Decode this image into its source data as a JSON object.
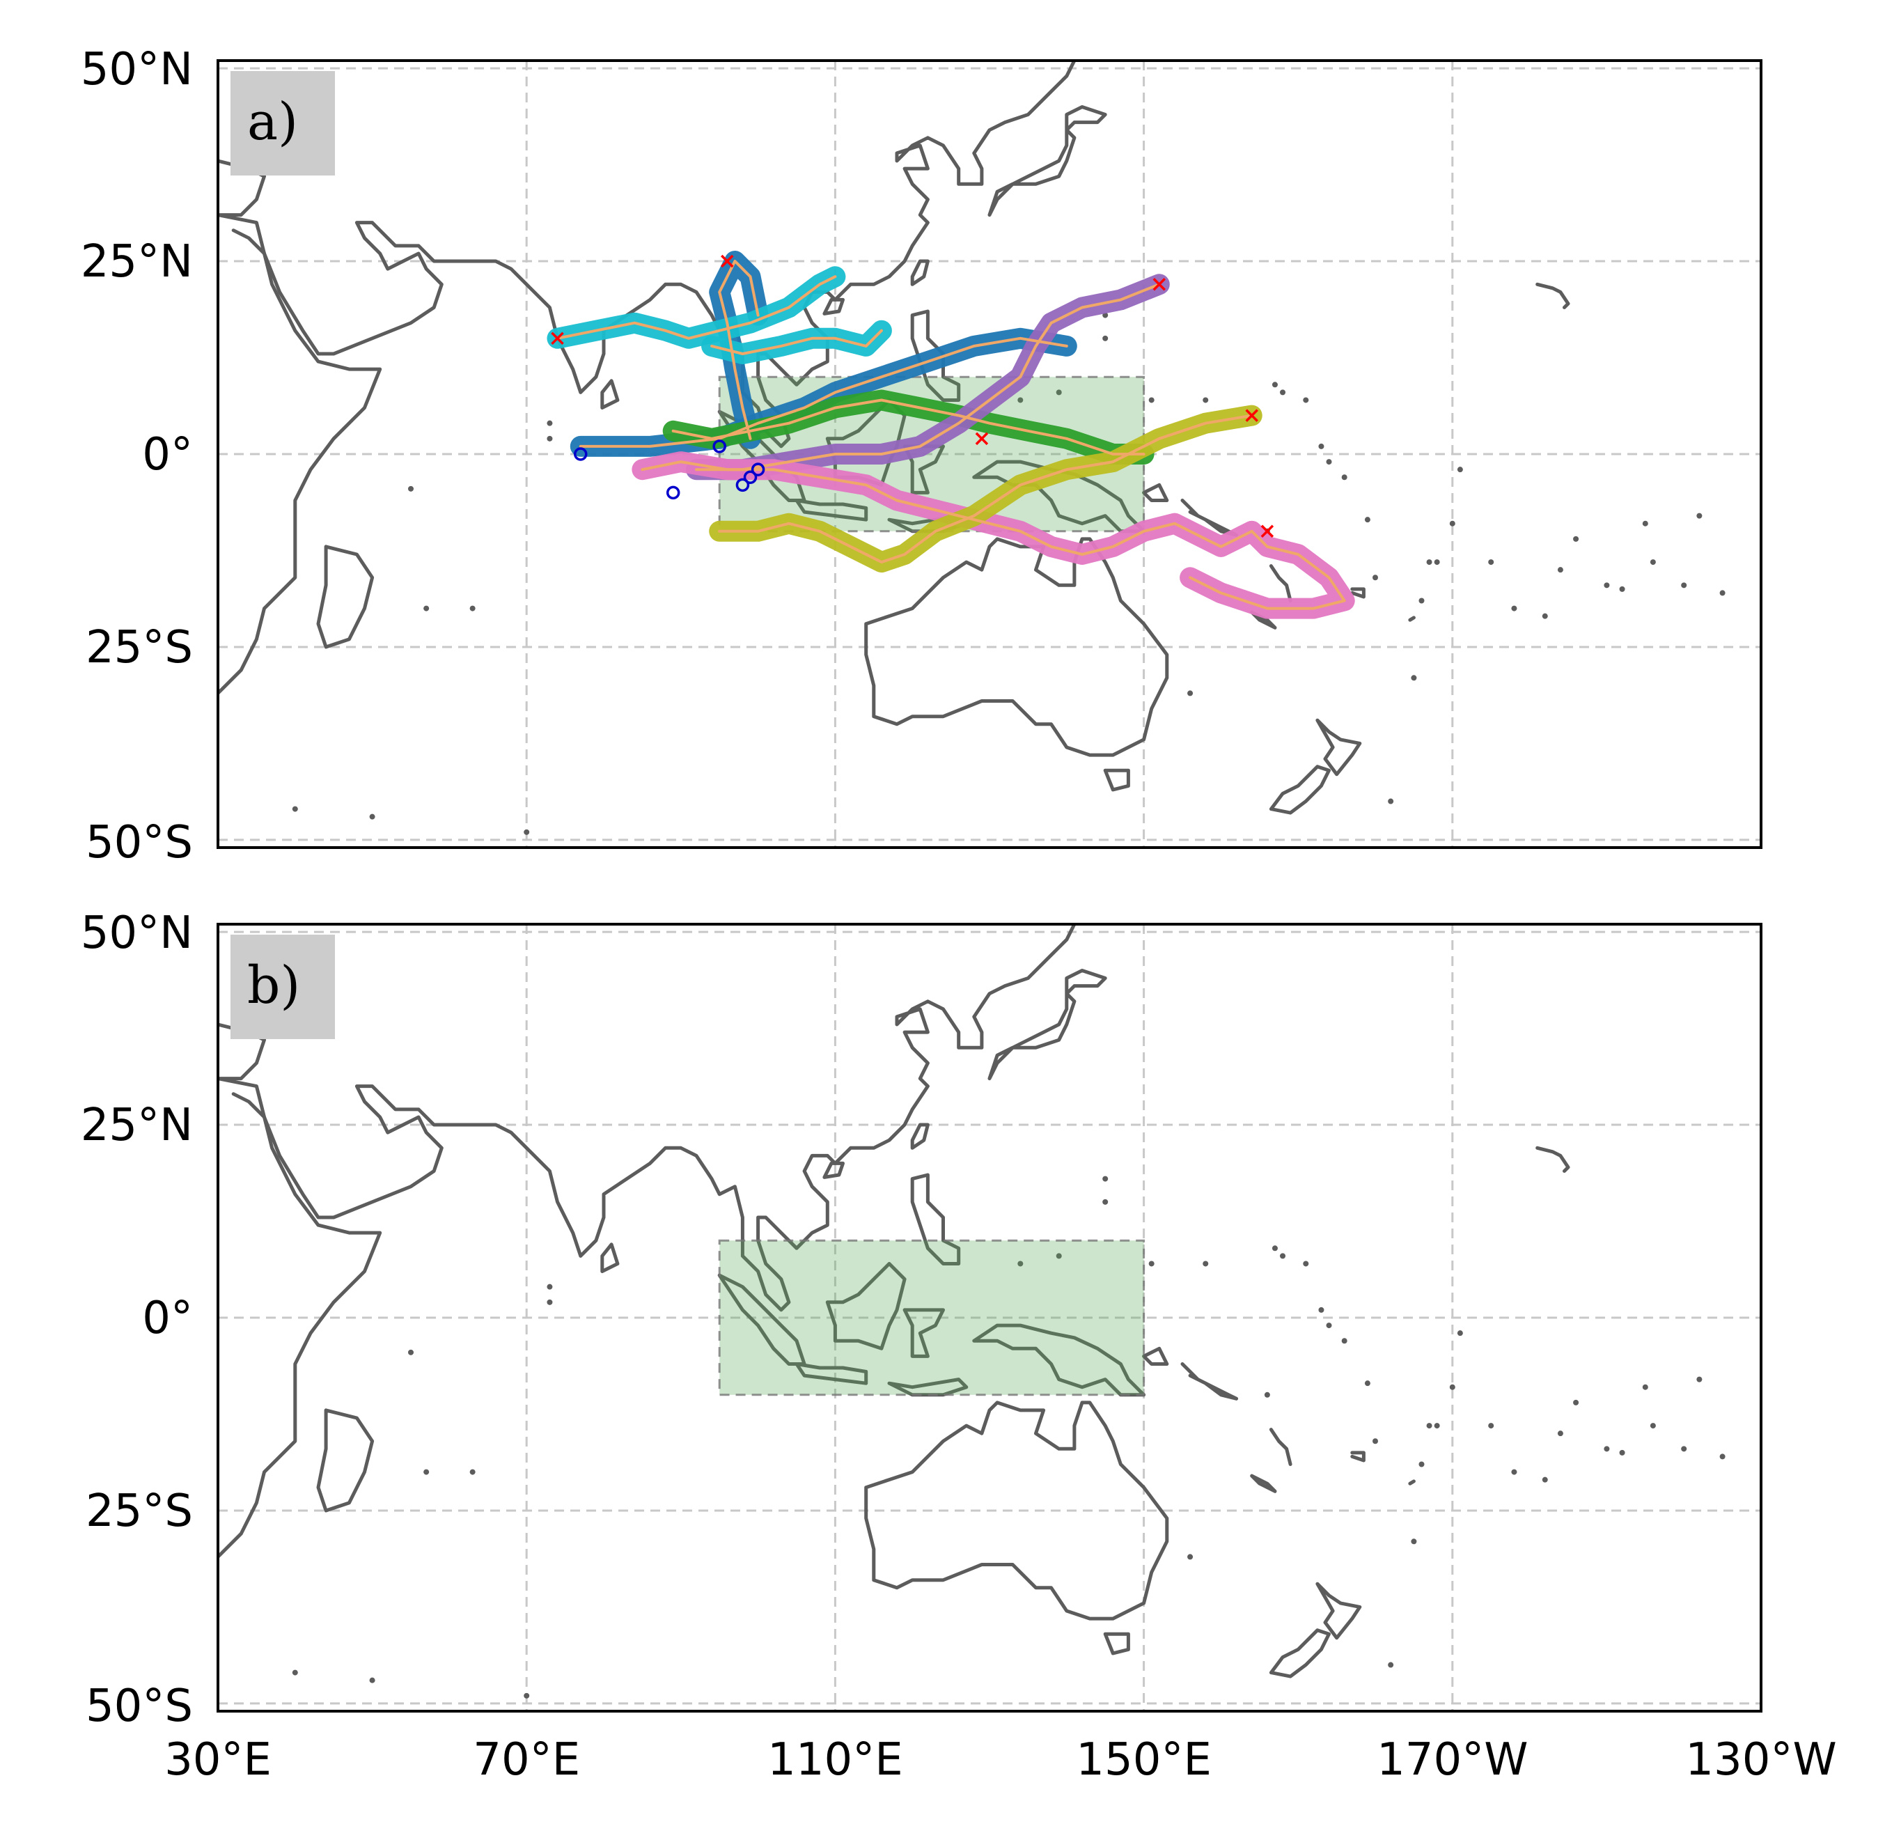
{
  "panels": [
    {
      "label": "a)",
      "has_tracks": true
    },
    {
      "label": "b)",
      "has_tracks": false
    }
  ],
  "axes": {
    "x_ticks": [
      {
        "lon": 30,
        "label": "30°E"
      },
      {
        "lon": 70,
        "label": "70°E"
      },
      {
        "lon": 110,
        "label": "110°E"
      },
      {
        "lon": 150,
        "label": "150°E"
      },
      {
        "lon": 190,
        "label": "170°W"
      },
      {
        "lon": 230,
        "label": "130°W"
      }
    ],
    "y_ticks": [
      {
        "lat": 50,
        "label": "50°N"
      },
      {
        "lat": 25,
        "label": "25°N"
      },
      {
        "lat": 0,
        "label": "0°"
      },
      {
        "lat": -25,
        "label": "25°S"
      },
      {
        "lat": -50,
        "label": "50°S"
      }
    ],
    "lon_range": [
      30,
      230
    ],
    "lat_range": [
      -51,
      51
    ],
    "grid": true
  },
  "highlight_box": {
    "lon": [
      95,
      150
    ],
    "lat": [
      -10,
      10
    ],
    "color": "#5aa95a"
  },
  "colors": {
    "coastline": "#5c5c5c",
    "track_line": "#f0a868",
    "start_marker": "#0000cc",
    "end_marker": "#ff0000",
    "label_box": "#cccccc"
  },
  "tracks": [
    {
      "color": "#1f77b4",
      "points": [
        [
          77,
          1
        ],
        [
          86,
          1
        ],
        [
          95,
          2
        ],
        [
          100,
          4
        ],
        [
          106,
          6
        ],
        [
          110,
          8
        ],
        [
          116,
          10
        ],
        [
          122,
          12
        ],
        [
          128,
          14
        ],
        [
          134,
          15
        ],
        [
          140,
          14
        ]
      ]
    },
    {
      "color": "#1f77b4",
      "points": [
        [
          99,
          2
        ],
        [
          98,
          6
        ],
        [
          97,
          11
        ],
        [
          96,
          17
        ],
        [
          95,
          21
        ],
        [
          97,
          25
        ],
        [
          99,
          23
        ],
        [
          100,
          18
        ]
      ]
    },
    {
      "color": "#17becf",
      "points": [
        [
          74,
          15
        ],
        [
          79,
          16
        ],
        [
          84,
          17
        ],
        [
          88,
          16
        ],
        [
          91,
          15
        ],
        [
          95,
          16
        ],
        [
          99,
          17
        ],
        [
          104,
          19
        ],
        [
          108,
          22
        ],
        [
          110,
          23
        ]
      ]
    },
    {
      "color": "#17becf",
      "points": [
        [
          94,
          14
        ],
        [
          98,
          13
        ],
        [
          103,
          14
        ],
        [
          107,
          15
        ],
        [
          110,
          15
        ],
        [
          114,
          14
        ],
        [
          116,
          16
        ]
      ]
    },
    {
      "color": "#2ca02c",
      "points": [
        [
          89,
          3
        ],
        [
          94,
          2
        ],
        [
          99,
          3
        ],
        [
          104,
          4
        ],
        [
          110,
          6
        ],
        [
          116,
          7
        ],
        [
          121,
          6
        ],
        [
          126,
          5
        ],
        [
          130,
          4
        ],
        [
          135,
          3
        ],
        [
          140,
          2
        ],
        [
          146,
          0
        ],
        [
          150,
          0
        ]
      ]
    },
    {
      "color": "#9467bd",
      "points": [
        [
          92,
          -2
        ],
        [
          98,
          -2
        ],
        [
          104,
          -1
        ],
        [
          110,
          0
        ],
        [
          116,
          0
        ],
        [
          121,
          1
        ],
        [
          126,
          4
        ],
        [
          130,
          7
        ],
        [
          134,
          10
        ],
        [
          136,
          14
        ],
        [
          138,
          17
        ],
        [
          142,
          19
        ],
        [
          147,
          20
        ],
        [
          152,
          22
        ]
      ]
    },
    {
      "color": "#e377c2",
      "points": [
        [
          85,
          -2
        ],
        [
          90,
          -1
        ],
        [
          96,
          -2
        ],
        [
          102,
          -2
        ],
        [
          108,
          -3
        ],
        [
          114,
          -4
        ],
        [
          118,
          -6
        ],
        [
          122,
          -7
        ],
        [
          126,
          -8
        ],
        [
          130,
          -9
        ],
        [
          134,
          -10
        ],
        [
          138,
          -12
        ],
        [
          142,
          -13
        ],
        [
          146,
          -12
        ],
        [
          150,
          -10
        ],
        [
          154,
          -9
        ],
        [
          158,
          -11
        ],
        [
          160,
          -12
        ],
        [
          162,
          -11
        ],
        [
          164,
          -10
        ],
        [
          166,
          -12
        ],
        [
          170,
          -13
        ],
        [
          174,
          -16
        ],
        [
          176,
          -19
        ],
        [
          172,
          -20
        ],
        [
          166,
          -20
        ],
        [
          160,
          -18
        ],
        [
          156,
          -16
        ]
      ]
    },
    {
      "color": "#bcbd22",
      "points": [
        [
          95,
          -10
        ],
        [
          100,
          -10
        ],
        [
          104,
          -9
        ],
        [
          108,
          -10
        ],
        [
          112,
          -12
        ],
        [
          116,
          -14
        ],
        [
          119,
          -13
        ],
        [
          123,
          -10
        ],
        [
          128,
          -8
        ],
        [
          134,
          -4
        ],
        [
          140,
          -2
        ],
        [
          146,
          -1
        ],
        [
          152,
          2
        ],
        [
          158,
          4
        ],
        [
          164,
          5
        ]
      ]
    }
  ],
  "start_points": [
    [
      77,
      0
    ],
    [
      89,
      -5
    ],
    [
      95,
      1
    ],
    [
      99,
      -3
    ],
    [
      100,
      -2
    ],
    [
      98,
      -4
    ]
  ],
  "end_points": [
    [
      74,
      15
    ],
    [
      96,
      25
    ],
    [
      152,
      22
    ],
    [
      164,
      5
    ],
    [
      129,
      2
    ],
    [
      166,
      -10
    ]
  ]
}
